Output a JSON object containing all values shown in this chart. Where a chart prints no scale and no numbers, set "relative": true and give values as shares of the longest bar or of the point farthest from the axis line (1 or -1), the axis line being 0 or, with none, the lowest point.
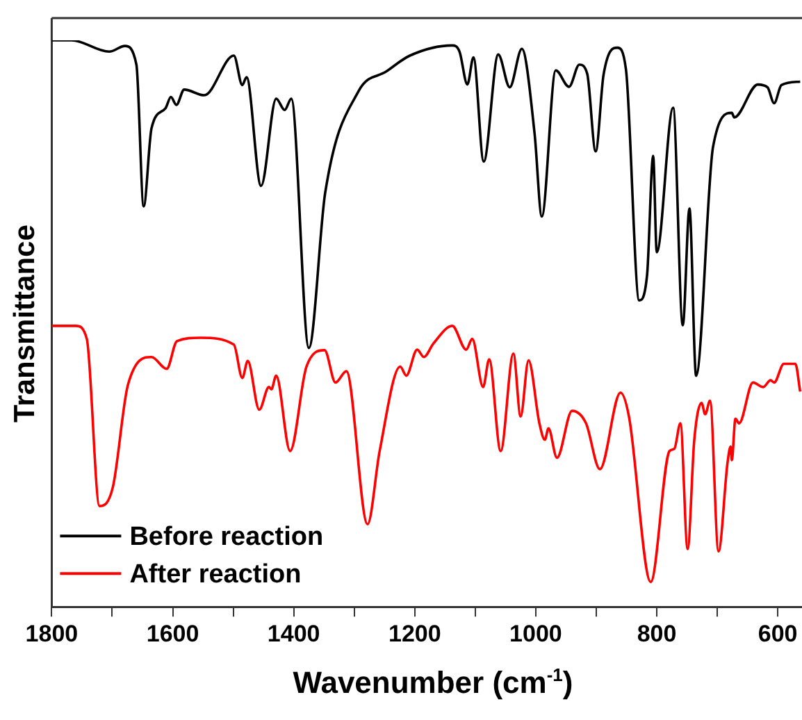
{
  "chart_data": {
    "type": "line",
    "relative": true,
    "xlabel": "Wavenumber (cm$^{-1}$)",
    "ylabel": "Transmittance",
    "xlim": [
      1800,
      560
    ],
    "xticks": [
      1800,
      {
        "value": 1700,
        "label": null
      },
      1600,
      {
        "value": 1500,
        "label": null
      },
      1400,
      {
        "value": 1300,
        "label": null
      },
      1200,
      {
        "value": 1100,
        "label": null
      },
      1000,
      {
        "value": 900,
        "label": null
      },
      800,
      {
        "value": 700,
        "label": null
      },
      600
    ],
    "legend": "bottom left",
    "marker": "none",
    "line_style": "solid",
    "grid": false,
    "series": [
      {
        "name": "Before reaction",
        "color": "#000000",
        "x": [
          1800,
          1767,
          1705,
          1679,
          1660,
          1648,
          1635,
          1612,
          1603,
          1594,
          1581,
          1548,
          1499,
          1485,
          1478,
          1454,
          1429,
          1415,
          1404,
          1375,
          1348,
          1293,
          1247,
          1208,
          1138,
          1126,
          1113,
          1103,
          1086,
          1062,
          1043,
          1023,
          1002,
          990,
          967,
          945,
          928,
          915,
          901,
          888,
          865,
          851,
          829,
          816,
          806,
          800,
          773,
          757,
          746,
          735,
          707,
          676,
          672,
          633,
          617,
          606,
          594,
          563
        ],
        "values": [
          1.0,
          1.0,
          0.98,
          0.99,
          0.957,
          0.707,
          0.845,
          0.88,
          0.9,
          0.886,
          0.913,
          0.903,
          0.973,
          0.921,
          0.935,
          0.743,
          0.897,
          0.877,
          0.897,
          0.457,
          0.731,
          0.91,
          0.945,
          0.973,
          0.991,
          0.98,
          0.922,
          0.97,
          0.786,
          0.975,
          0.917,
          0.985,
          0.836,
          0.689,
          0.947,
          0.918,
          0.957,
          0.941,
          0.804,
          0.939,
          0.987,
          0.949,
          0.541,
          0.586,
          0.796,
          0.626,
          0.881,
          0.497,
          0.703,
          0.408,
          0.812,
          0.872,
          0.864,
          0.922,
          0.917,
          0.889,
          0.921,
          0.927
        ]
      },
      {
        "name": "After reaction",
        "color": "#ff0000",
        "x": [
          1800,
          1760,
          1742,
          1721,
          1699,
          1674,
          1635,
          1610,
          1593,
          1554,
          1499,
          1485,
          1476,
          1457,
          1441,
          1437,
          1429,
          1406,
          1379,
          1349,
          1331,
          1313,
          1278,
          1258,
          1224,
          1214,
          1196,
          1185,
          1169,
          1138,
          1115,
          1105,
          1087,
          1077,
          1058,
          1037,
          1025,
          1012,
          994,
          985,
          979,
          965,
          940,
          917,
          894,
          860,
          846,
          810,
          779,
          771,
          761,
          749,
          738,
          726,
          720,
          712,
          698,
          683,
          678,
          676,
          670,
          664,
          641,
          624,
          612,
          606,
          590,
          571,
          563
        ],
        "values": [
          0.496,
          0.496,
          0.473,
          0.178,
          0.211,
          0.392,
          0.441,
          0.42,
          0.469,
          0.475,
          0.463,
          0.404,
          0.434,
          0.348,
          0.388,
          0.384,
          0.408,
          0.275,
          0.424,
          0.453,
          0.396,
          0.416,
          0.146,
          0.275,
          0.424,
          0.408,
          0.454,
          0.441,
          0.465,
          0.496,
          0.454,
          0.473,
          0.388,
          0.437,
          0.275,
          0.447,
          0.336,
          0.435,
          0.324,
          0.295,
          0.315,
          0.263,
          0.346,
          0.324,
          0.243,
          0.378,
          0.336,
          0.044,
          0.275,
          0.279,
          0.324,
          0.102,
          0.295,
          0.36,
          0.34,
          0.364,
          0.098,
          0.255,
          0.283,
          0.259,
          0.332,
          0.324,
          0.396,
          0.388,
          0.4,
          0.396,
          0.429,
          0.429,
          0.38
        ]
      }
    ]
  }
}
